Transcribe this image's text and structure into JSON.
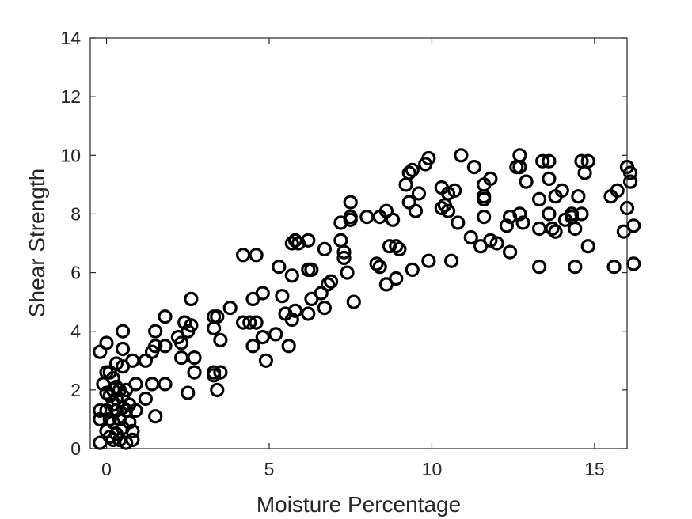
{
  "chart_data": {
    "type": "scatter",
    "title": "",
    "xlabel": "Moisture Percentage",
    "ylabel": "Shear Strength",
    "xlim": [
      -0.5,
      16
    ],
    "ylim": [
      0,
      14
    ],
    "xticks": [
      0,
      5,
      10,
      15
    ],
    "yticks": [
      0,
      2,
      4,
      6,
      8,
      10,
      12,
      14
    ],
    "grid": false,
    "legend": "none",
    "colors": {
      "marker": "#000000",
      "axis": "#262626",
      "background": "#ffffff"
    },
    "marker": "open-circle",
    "points": [
      [
        -0.2,
        0.2
      ],
      [
        -0.2,
        1.0
      ],
      [
        -0.2,
        1.3
      ],
      [
        -0.2,
        3.3
      ],
      [
        -0.1,
        2.2
      ],
      [
        0.0,
        3.6
      ],
      [
        0.0,
        2.6
      ],
      [
        0.0,
        1.9
      ],
      [
        0.0,
        1.3
      ],
      [
        0.0,
        0.6
      ],
      [
        0.1,
        2.6
      ],
      [
        0.1,
        1.8
      ],
      [
        0.1,
        1.0
      ],
      [
        0.1,
        0.4
      ],
      [
        0.2,
        2.4
      ],
      [
        0.2,
        2.0
      ],
      [
        0.2,
        1.5
      ],
      [
        0.2,
        0.9
      ],
      [
        0.2,
        0.3
      ],
      [
        0.3,
        2.9
      ],
      [
        0.3,
        2.1
      ],
      [
        0.3,
        1.7
      ],
      [
        0.3,
        1.3
      ],
      [
        0.3,
        0.5
      ],
      [
        0.4,
        2.0
      ],
      [
        0.4,
        1.0
      ],
      [
        0.4,
        0.3
      ],
      [
        0.5,
        4.0
      ],
      [
        0.5,
        3.4
      ],
      [
        0.5,
        2.8
      ],
      [
        0.5,
        1.8
      ],
      [
        0.5,
        1.4
      ],
      [
        0.5,
        0.7
      ],
      [
        0.6,
        2.0
      ],
      [
        0.6,
        1.3
      ],
      [
        0.6,
        0.2
      ],
      [
        0.7,
        0.9
      ],
      [
        0.7,
        1.5
      ],
      [
        0.8,
        3.0
      ],
      [
        0.8,
        0.3
      ],
      [
        0.8,
        0.6
      ],
      [
        0.9,
        1.3
      ],
      [
        0.9,
        2.2
      ],
      [
        1.2,
        1.7
      ],
      [
        1.2,
        3.0
      ],
      [
        1.4,
        2.2
      ],
      [
        1.4,
        3.3
      ],
      [
        1.5,
        3.5
      ],
      [
        1.5,
        4.0
      ],
      [
        1.5,
        1.1
      ],
      [
        1.8,
        2.2
      ],
      [
        1.8,
        3.5
      ],
      [
        1.8,
        4.5
      ],
      [
        2.2,
        3.8
      ],
      [
        2.3,
        3.1
      ],
      [
        2.3,
        3.6
      ],
      [
        2.4,
        4.3
      ],
      [
        2.5,
        4.0
      ],
      [
        2.5,
        1.9
      ],
      [
        2.6,
        4.2
      ],
      [
        2.6,
        5.1
      ],
      [
        2.7,
        2.6
      ],
      [
        2.7,
        3.1
      ],
      [
        3.3,
        2.6
      ],
      [
        3.3,
        4.1
      ],
      [
        3.3,
        4.5
      ],
      [
        3.3,
        2.5
      ],
      [
        3.4,
        2.0
      ],
      [
        3.4,
        4.5
      ],
      [
        3.5,
        2.6
      ],
      [
        3.5,
        3.7
      ],
      [
        3.8,
        4.8
      ],
      [
        4.2,
        4.3
      ],
      [
        4.2,
        6.6
      ],
      [
        4.4,
        4.3
      ],
      [
        4.5,
        3.5
      ],
      [
        4.5,
        5.1
      ],
      [
        4.6,
        4.3
      ],
      [
        4.6,
        6.6
      ],
      [
        4.8,
        5.3
      ],
      [
        4.8,
        3.8
      ],
      [
        4.9,
        3.0
      ],
      [
        5.2,
        3.9
      ],
      [
        5.3,
        6.2
      ],
      [
        5.4,
        5.2
      ],
      [
        5.5,
        4.6
      ],
      [
        5.6,
        3.5
      ],
      [
        5.7,
        5.9
      ],
      [
        5.7,
        4.4
      ],
      [
        5.7,
        7.0
      ],
      [
        5.8,
        7.1
      ],
      [
        5.8,
        4.7
      ],
      [
        5.9,
        7.0
      ],
      [
        6.2,
        4.6
      ],
      [
        6.2,
        6.1
      ],
      [
        6.2,
        7.1
      ],
      [
        6.3,
        5.1
      ],
      [
        6.3,
        6.1
      ],
      [
        6.6,
        5.3
      ],
      [
        6.7,
        4.8
      ],
      [
        6.7,
        6.8
      ],
      [
        6.8,
        5.6
      ],
      [
        6.9,
        5.7
      ],
      [
        7.2,
        7.7
      ],
      [
        7.2,
        7.1
      ],
      [
        7.3,
        6.7
      ],
      [
        7.3,
        6.5
      ],
      [
        7.4,
        6.0
      ],
      [
        7.5,
        7.9
      ],
      [
        7.5,
        8.4
      ],
      [
        7.5,
        7.8
      ],
      [
        7.6,
        5.0
      ],
      [
        8.0,
        7.9
      ],
      [
        8.3,
        6.3
      ],
      [
        8.4,
        6.2
      ],
      [
        8.4,
        7.9
      ],
      [
        8.6,
        5.6
      ],
      [
        8.6,
        8.1
      ],
      [
        8.7,
        6.9
      ],
      [
        8.8,
        7.8
      ],
      [
        8.9,
        5.8
      ],
      [
        8.9,
        6.9
      ],
      [
        9.0,
        6.8
      ],
      [
        9.2,
        9.0
      ],
      [
        9.3,
        9.4
      ],
      [
        9.3,
        8.4
      ],
      [
        9.4,
        6.1
      ],
      [
        9.4,
        9.5
      ],
      [
        9.5,
        8.1
      ],
      [
        9.6,
        8.7
      ],
      [
        9.8,
        9.7
      ],
      [
        9.9,
        6.4
      ],
      [
        9.9,
        9.9
      ],
      [
        10.3,
        8.9
      ],
      [
        10.3,
        8.2
      ],
      [
        10.4,
        8.3
      ],
      [
        10.5,
        8.7
      ],
      [
        10.5,
        8.1
      ],
      [
        10.6,
        6.4
      ],
      [
        10.7,
        8.8
      ],
      [
        10.8,
        7.7
      ],
      [
        10.9,
        10.0
      ],
      [
        11.2,
        7.2
      ],
      [
        11.3,
        9.6
      ],
      [
        11.5,
        6.9
      ],
      [
        11.6,
        8.6
      ],
      [
        11.6,
        9.0
      ],
      [
        11.6,
        8.5
      ],
      [
        11.6,
        7.9
      ],
      [
        11.8,
        9.2
      ],
      [
        11.8,
        7.1
      ],
      [
        12.0,
        7.0
      ],
      [
        12.3,
        7.6
      ],
      [
        12.4,
        6.7
      ],
      [
        12.4,
        7.9
      ],
      [
        12.6,
        9.6
      ],
      [
        12.7,
        10.0
      ],
      [
        12.7,
        9.6
      ],
      [
        12.7,
        8.0
      ],
      [
        12.8,
        7.7
      ],
      [
        12.9,
        9.1
      ],
      [
        13.3,
        8.5
      ],
      [
        13.3,
        7.5
      ],
      [
        13.3,
        6.2
      ],
      [
        13.4,
        9.8
      ],
      [
        13.6,
        9.8
      ],
      [
        13.6,
        9.2
      ],
      [
        13.6,
        8.0
      ],
      [
        13.7,
        7.5
      ],
      [
        13.8,
        8.6
      ],
      [
        13.8,
        7.4
      ],
      [
        14.0,
        8.8
      ],
      [
        14.1,
        7.8
      ],
      [
        14.3,
        8.0
      ],
      [
        14.3,
        7.9
      ],
      [
        14.4,
        6.2
      ],
      [
        14.4,
        7.5
      ],
      [
        14.5,
        8.6
      ],
      [
        14.6,
        9.8
      ],
      [
        14.6,
        8.0
      ],
      [
        14.7,
        9.4
      ],
      [
        14.8,
        9.8
      ],
      [
        14.8,
        6.9
      ],
      [
        15.5,
        8.6
      ],
      [
        15.6,
        6.2
      ],
      [
        15.7,
        8.8
      ],
      [
        15.9,
        7.4
      ],
      [
        16.0,
        9.6
      ],
      [
        16.0,
        8.2
      ],
      [
        16.0,
        9.6
      ],
      [
        16.1,
        9.4
      ],
      [
        16.1,
        9.1
      ],
      [
        16.2,
        7.6
      ],
      [
        16.2,
        6.3
      ]
    ]
  }
}
